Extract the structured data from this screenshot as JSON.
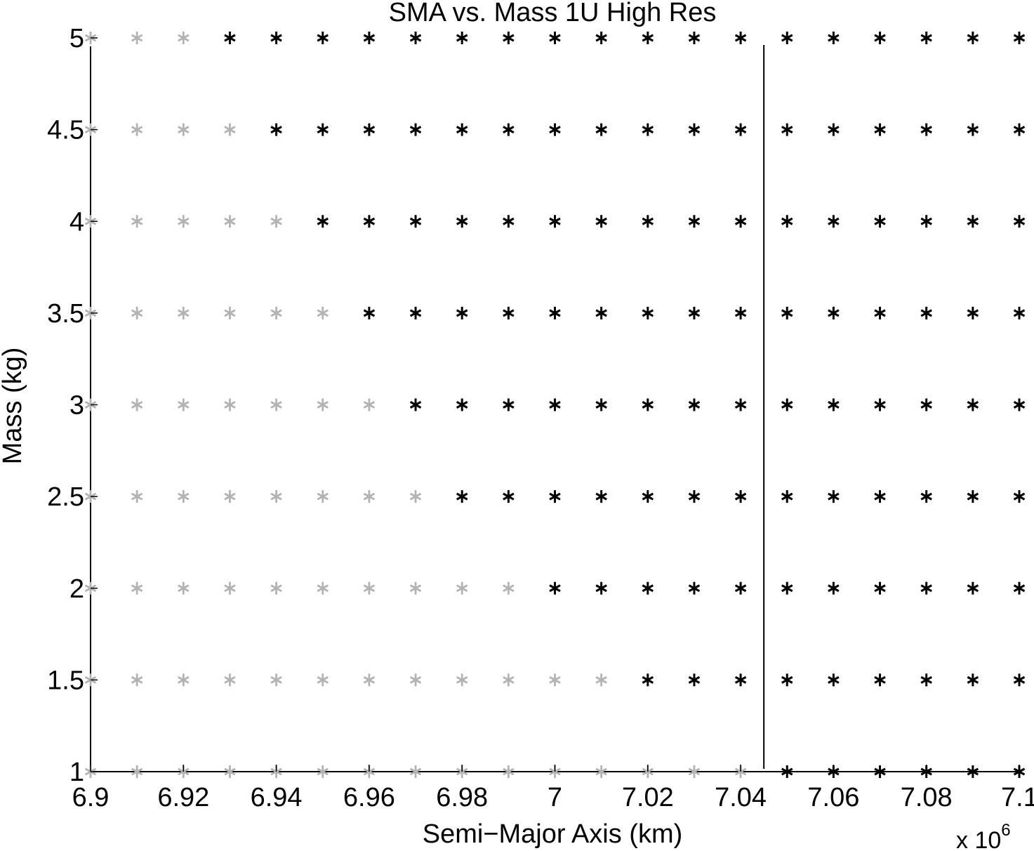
{
  "chart_data": {
    "type": "scatter",
    "title": "SMA vs. Mass 1U High Res",
    "xlabel": "Semi−Major Axis (km)",
    "ylabel": "Mass (kg)",
    "x_multiplier": {
      "base": "x 10",
      "exponent": "6"
    },
    "xlim": [
      6.9,
      7.1
    ],
    "ylim": [
      1,
      5
    ],
    "x_ticks": [
      6.9,
      6.92,
      6.94,
      6.96,
      6.98,
      7.0,
      7.02,
      7.04,
      7.06,
      7.08,
      7.1
    ],
    "x_tick_labels": [
      "6.9",
      "6.92",
      "6.94",
      "6.96",
      "6.98",
      "7",
      "7.02",
      "7.04",
      "7.06",
      "7.08",
      "7.1"
    ],
    "y_ticks": [
      1,
      1.5,
      2,
      2.5,
      3,
      3.5,
      4,
      4.5,
      5
    ],
    "y_tick_labels": [
      "1",
      "1.5",
      "2",
      "2.5",
      "3",
      "3.5",
      "4",
      "4.5",
      "5"
    ],
    "marker": "asterisk",
    "grid": false,
    "x_grid": [
      6.9,
      6.91,
      6.92,
      6.93,
      6.94,
      6.95,
      6.96,
      6.97,
      6.98,
      6.99,
      7.0,
      7.01,
      7.02,
      7.03,
      7.04,
      7.05,
      7.06,
      7.07,
      7.08,
      7.09,
      7.1
    ],
    "y_grid": [
      1,
      1.5,
      2,
      2.5,
      3,
      3.5,
      4,
      4.5,
      5
    ],
    "black_start_x": {
      "1": 7.05,
      "1.5": 7.02,
      "2": 7.0,
      "2.5": 6.98,
      "3": 6.97,
      "3.5": 6.96,
      "4": 6.95,
      "4.5": 6.94,
      "5": 6.93
    },
    "vertical_line_x": 7.045,
    "series": [
      {
        "color": "#b3b3b3"
      },
      {
        "color": "#000000"
      }
    ]
  }
}
